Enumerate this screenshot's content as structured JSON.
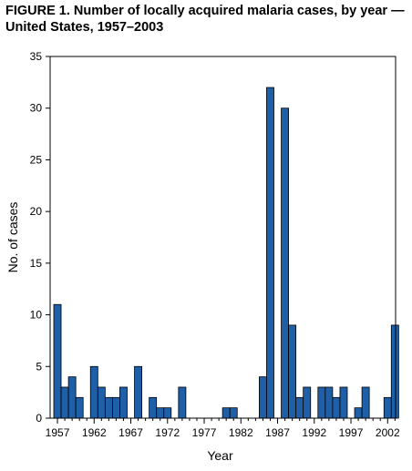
{
  "chart_data": {
    "type": "bar",
    "title": "FIGURE 1. Number of locally acquired malaria cases, by year — United States, 1957–2003",
    "xlabel": "Year",
    "ylabel": "No. of cases",
    "ylim": [
      0,
      35
    ],
    "yticks": [
      0,
      5,
      10,
      15,
      20,
      25,
      30,
      35
    ],
    "xticks": [
      1957,
      1962,
      1967,
      1972,
      1977,
      1982,
      1987,
      1992,
      1997,
      2002
    ],
    "bar_color": "#1f5fa8",
    "grid": false,
    "categories": [
      1957,
      1958,
      1959,
      1960,
      1961,
      1962,
      1963,
      1964,
      1965,
      1966,
      1967,
      1968,
      1969,
      1970,
      1971,
      1972,
      1973,
      1974,
      1975,
      1976,
      1977,
      1978,
      1979,
      1980,
      1981,
      1982,
      1983,
      1984,
      1985,
      1986,
      1987,
      1988,
      1989,
      1990,
      1991,
      1992,
      1993,
      1994,
      1995,
      1996,
      1997,
      1998,
      1999,
      2000,
      2001,
      2002,
      2003
    ],
    "values": [
      11,
      3,
      4,
      2,
      0,
      5,
      3,
      2,
      2,
      3,
      0,
      5,
      0,
      2,
      1,
      1,
      0,
      3,
      0,
      0,
      0,
      0,
      0,
      1,
      1,
      0,
      0,
      0,
      4,
      32,
      0,
      30,
      9,
      2,
      3,
      0,
      3,
      3,
      2,
      3,
      0,
      1,
      3,
      0,
      0,
      2,
      9
    ]
  }
}
